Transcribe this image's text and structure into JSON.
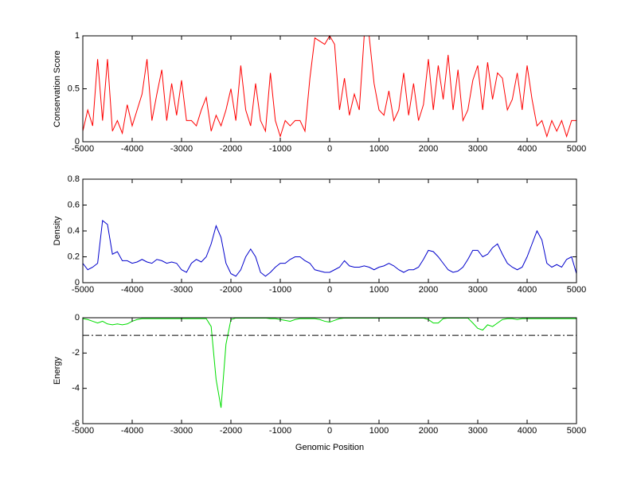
{
  "chart_data": [
    {
      "type": "line",
      "ylabel": "Conservation Score",
      "color": "#ff0000",
      "x": [
        -5000,
        -4900,
        -4800,
        -4700,
        -4600,
        -4500,
        -4400,
        -4300,
        -4200,
        -4100,
        -4000,
        -3900,
        -3800,
        -3700,
        -3600,
        -3500,
        -3400,
        -3300,
        -3200,
        -3100,
        -3000,
        -2900,
        -2800,
        -2700,
        -2600,
        -2500,
        -2400,
        -2300,
        -2200,
        -2100,
        -2000,
        -1900,
        -1800,
        -1700,
        -1600,
        -1500,
        -1400,
        -1300,
        -1200,
        -1100,
        -1000,
        -900,
        -800,
        -700,
        -600,
        -500,
        -400,
        -300,
        -200,
        -100,
        0,
        100,
        200,
        300,
        400,
        500,
        600,
        700,
        800,
        900,
        1000,
        1100,
        1200,
        1300,
        1400,
        1500,
        1600,
        1700,
        1800,
        1900,
        2000,
        2100,
        2200,
        2300,
        2400,
        2500,
        2600,
        2700,
        2800,
        2900,
        3000,
        3100,
        3200,
        3300,
        3400,
        3500,
        3600,
        3700,
        3800,
        3900,
        4000,
        4100,
        4200,
        4300,
        4400,
        4500,
        4600,
        4700,
        4800,
        4900,
        5000
      ],
      "values": [
        0.1,
        0.3,
        0.15,
        0.78,
        0.2,
        0.78,
        0.1,
        0.2,
        0.08,
        0.35,
        0.15,
        0.3,
        0.45,
        0.78,
        0.2,
        0.45,
        0.68,
        0.2,
        0.55,
        0.25,
        0.58,
        0.2,
        0.2,
        0.15,
        0.3,
        0.42,
        0.1,
        0.25,
        0.15,
        0.3,
        0.5,
        0.2,
        0.72,
        0.3,
        0.15,
        0.55,
        0.2,
        0.1,
        0.65,
        0.2,
        0.05,
        0.2,
        0.15,
        0.2,
        0.2,
        0.1,
        0.6,
        0.98,
        0.95,
        0.92,
        1,
        0.92,
        0.3,
        0.6,
        0.25,
        0.45,
        0.3,
        1,
        1,
        0.55,
        0.3,
        0.25,
        0.48,
        0.2,
        0.3,
        0.65,
        0.25,
        0.55,
        0.2,
        0.35,
        0.78,
        0.3,
        0.72,
        0.4,
        0.82,
        0.3,
        0.68,
        0.2,
        0.3,
        0.58,
        0.72,
        0.3,
        0.75,
        0.4,
        0.65,
        0.6,
        0.3,
        0.4,
        0.65,
        0.3,
        0.72,
        0.4,
        0.15,
        0.2,
        0.05,
        0.2,
        0.1,
        0.2,
        0.05,
        0.2,
        0.2
      ],
      "xlim": [
        -5000,
        5000
      ],
      "xticks": [
        -5000,
        -4000,
        -3000,
        -2000,
        -1000,
        0,
        1000,
        2000,
        3000,
        4000,
        5000
      ],
      "ylim": [
        0,
        1
      ],
      "yticks": [
        0,
        0.5,
        1
      ]
    },
    {
      "type": "line",
      "ylabel": "Density",
      "color": "#0000cc",
      "x": [
        -5000,
        -4900,
        -4800,
        -4700,
        -4600,
        -4500,
        -4400,
        -4300,
        -4200,
        -4100,
        -4000,
        -3900,
        -3800,
        -3700,
        -3600,
        -3500,
        -3400,
        -3300,
        -3200,
        -3100,
        -3000,
        -2900,
        -2800,
        -2700,
        -2600,
        -2500,
        -2400,
        -2300,
        -2200,
        -2100,
        -2000,
        -1900,
        -1800,
        -1700,
        -1600,
        -1500,
        -1400,
        -1300,
        -1200,
        -1100,
        -1000,
        -900,
        -800,
        -700,
        -600,
        -500,
        -400,
        -300,
        -200,
        -100,
        0,
        100,
        200,
        300,
        400,
        500,
        600,
        700,
        800,
        900,
        1000,
        1100,
        1200,
        1300,
        1400,
        1500,
        1600,
        1700,
        1800,
        1900,
        2000,
        2100,
        2200,
        2300,
        2400,
        2500,
        2600,
        2700,
        2800,
        2900,
        3000,
        3100,
        3200,
        3300,
        3400,
        3500,
        3600,
        3700,
        3800,
        3900,
        4000,
        4100,
        4200,
        4300,
        4400,
        4500,
        4600,
        4700,
        4800,
        4900,
        5000
      ],
      "values": [
        0.15,
        0.1,
        0.12,
        0.15,
        0.48,
        0.45,
        0.22,
        0.24,
        0.17,
        0.17,
        0.15,
        0.16,
        0.18,
        0.16,
        0.15,
        0.18,
        0.17,
        0.15,
        0.16,
        0.15,
        0.1,
        0.08,
        0.15,
        0.18,
        0.16,
        0.2,
        0.3,
        0.44,
        0.35,
        0.15,
        0.07,
        0.05,
        0.1,
        0.2,
        0.26,
        0.2,
        0.08,
        0.05,
        0.08,
        0.12,
        0.15,
        0.15,
        0.18,
        0.2,
        0.2,
        0.17,
        0.15,
        0.1,
        0.09,
        0.08,
        0.08,
        0.1,
        0.12,
        0.17,
        0.13,
        0.12,
        0.12,
        0.13,
        0.12,
        0.1,
        0.12,
        0.13,
        0.15,
        0.13,
        0.1,
        0.08,
        0.1,
        0.1,
        0.12,
        0.18,
        0.25,
        0.24,
        0.2,
        0.15,
        0.1,
        0.08,
        0.09,
        0.12,
        0.18,
        0.25,
        0.25,
        0.2,
        0.22,
        0.27,
        0.3,
        0.22,
        0.15,
        0.12,
        0.1,
        0.12,
        0.2,
        0.3,
        0.4,
        0.33,
        0.15,
        0.12,
        0.14,
        0.12,
        0.18,
        0.2,
        0.07
      ],
      "xlim": [
        -5000,
        5000
      ],
      "xticks": [
        -5000,
        -4000,
        -3000,
        -2000,
        -1000,
        0,
        1000,
        2000,
        3000,
        4000,
        5000
      ],
      "ylim": [
        0,
        0.8
      ],
      "yticks": [
        0,
        0.2,
        0.4,
        0.6,
        0.8
      ]
    },
    {
      "type": "line",
      "ylabel": "Energy",
      "xlabel": "Genomic Position",
      "color": "#00dd00",
      "reference_line": -1,
      "x": [
        -5000,
        -4900,
        -4800,
        -4700,
        -4600,
        -4500,
        -4400,
        -4300,
        -4200,
        -4100,
        -4000,
        -3900,
        -3800,
        -3700,
        -3600,
        -3500,
        -3400,
        -3300,
        -3200,
        -3100,
        -3000,
        -2900,
        -2800,
        -2700,
        -2600,
        -2500,
        -2400,
        -2300,
        -2200,
        -2100,
        -2000,
        -1900,
        -1800,
        -1700,
        -1600,
        -1500,
        -1400,
        -1300,
        -1200,
        -1100,
        -1000,
        -900,
        -800,
        -700,
        -600,
        -500,
        -400,
        -300,
        -200,
        -100,
        0,
        100,
        200,
        300,
        400,
        500,
        600,
        700,
        800,
        900,
        1000,
        1100,
        1200,
        1300,
        1400,
        1500,
        1600,
        1700,
        1800,
        1900,
        2000,
        2100,
        2200,
        2300,
        2400,
        2500,
        2600,
        2700,
        2800,
        2900,
        3000,
        3100,
        3200,
        3300,
        3400,
        3500,
        3600,
        3700,
        3800,
        3900,
        4000,
        4100,
        4200,
        4300,
        4400,
        4500,
        4600,
        4700,
        4800,
        4900,
        5000
      ],
      "values": [
        -0.05,
        -0.1,
        -0.2,
        -0.3,
        -0.2,
        -0.35,
        -0.4,
        -0.35,
        -0.4,
        -0.35,
        -0.2,
        -0.1,
        -0.05,
        -0.05,
        -0.05,
        -0.05,
        -0.05,
        -0.05,
        -0.05,
        -0.05,
        -0.05,
        -0.05,
        -0.05,
        -0.05,
        -0.05,
        -0.05,
        -0.5,
        -3.5,
        -5.1,
        -1.5,
        -0.1,
        -0.02,
        -0.02,
        -0.02,
        -0.02,
        -0.02,
        -0.02,
        -0.02,
        -0.05,
        -0.05,
        -0.1,
        -0.15,
        -0.2,
        -0.1,
        -0.05,
        -0.05,
        -0.05,
        -0.05,
        -0.1,
        -0.2,
        -0.25,
        -0.15,
        -0.05,
        -0.02,
        -0.02,
        -0.02,
        -0.02,
        -0.02,
        -0.02,
        -0.02,
        -0.02,
        -0.02,
        -0.02,
        -0.02,
        -0.02,
        -0.02,
        -0.02,
        -0.02,
        -0.02,
        -0.02,
        -0.1,
        -0.3,
        -0.3,
        -0.05,
        -0.02,
        -0.02,
        -0.02,
        -0.02,
        -0.02,
        -0.3,
        -0.6,
        -0.7,
        -0.4,
        -0.5,
        -0.3,
        -0.1,
        -0.05,
        -0.05,
        -0.1,
        -0.05,
        -0.05,
        -0.05,
        -0.05,
        -0.05,
        -0.05,
        -0.05,
        -0.05,
        -0.05,
        -0.05,
        -0.05,
        -0.05
      ],
      "xlim": [
        -5000,
        5000
      ],
      "xticks": [
        -5000,
        -4000,
        -3000,
        -2000,
        -1000,
        0,
        1000,
        2000,
        3000,
        4000,
        5000
      ],
      "ylim": [
        -6,
        0
      ],
      "yticks": [
        -6,
        -4,
        -2,
        0
      ]
    }
  ]
}
